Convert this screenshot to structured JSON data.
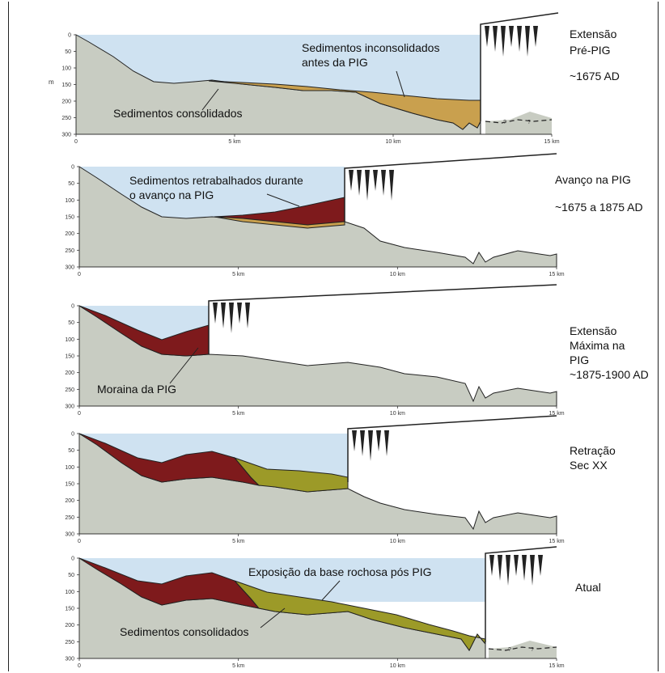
{
  "y_unit": "m",
  "depth_ticks": [
    "0",
    "50",
    "100",
    "150",
    "200",
    "250",
    "300"
  ],
  "distance_ticks": [
    "0",
    "5 km",
    "10 km",
    "15 km"
  ],
  "colors": {
    "water": "#cfe2f1",
    "bedrock": "#c8ccc2",
    "unconsolidated": "#c9a04e",
    "reworked": "#7e1a1c",
    "moraine": "#7e1a1c",
    "consolidated_green": "#9c9a28",
    "line": "#222222"
  },
  "panels": [
    {
      "id": "pre-pig",
      "labels": [
        "Sedimentos inconsolidados",
        "antes da PIG",
        "Sedimentos consolidados"
      ],
      "side": [
        "Extensão",
        "Pré-PIG",
        "~1675 AD"
      ]
    },
    {
      "id": "advance",
      "labels": [
        "Sedimentos retrabalhados durante",
        "o avanço na PIG"
      ],
      "side": [
        "Avanço na PIG",
        "~1675 a 1875 AD"
      ]
    },
    {
      "id": "maximum",
      "labels": [
        "Moraina da PIG"
      ],
      "side": [
        "Extensão",
        "Máxima na",
        "PIG",
        "~1875-1900 AD"
      ]
    },
    {
      "id": "retreat",
      "labels": [],
      "side": [
        "Retração",
        "Sec XX"
      ]
    },
    {
      "id": "current",
      "labels": [
        "Exposição da base rochosa pós PIG",
        "Sedimentos consolidados"
      ],
      "side": [
        "Atual"
      ]
    }
  ]
}
